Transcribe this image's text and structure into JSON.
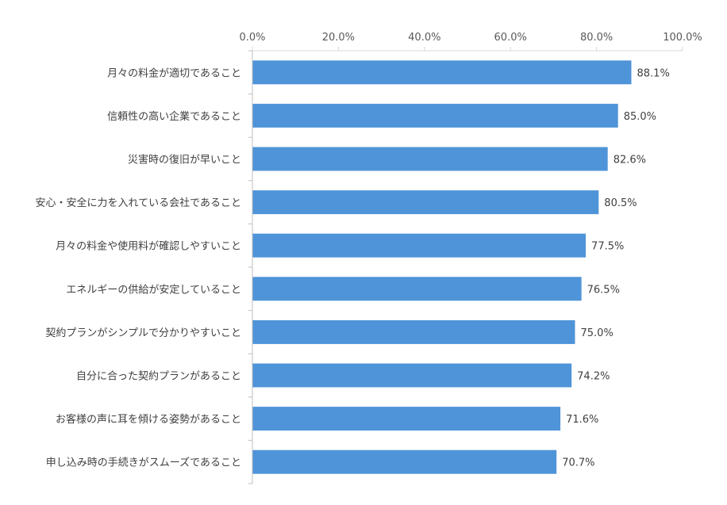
{
  "chart_data": {
    "type": "bar",
    "orientation": "horizontal",
    "title": "",
    "xlabel": "",
    "ylabel": "",
    "xlim": [
      0,
      100
    ],
    "x_ticks": [
      "0.0%",
      "20.0%",
      "40.0%",
      "60.0%",
      "80.0%",
      "100.0%"
    ],
    "x_axis_position": "top",
    "grid": false,
    "legend": "none",
    "bar_color": "#4F94D8",
    "categories": [
      "月々の料金が適切であること",
      "信頼性の高い企業であること",
      "災害時の復旧が早いこと",
      "安心・安全に力を入れている会社であること",
      "月々の料金や使用料が確認しやすいこと",
      "エネルギーの供給が安定していること",
      "契約プランがシンプルで分かりやすいこと",
      "自分に合った契約プランがあること",
      "お客様の声に耳を傾ける姿勢があること",
      "申し込み時の手続きがスムーズであること"
    ],
    "values": [
      88.1,
      85.0,
      82.6,
      80.5,
      77.5,
      76.5,
      75.0,
      74.2,
      71.6,
      70.7
    ],
    "data_labels": [
      "88.1%",
      "85.0%",
      "82.6%",
      "80.5%",
      "77.5%",
      "76.5%",
      "75.0%",
      "74.2%",
      "71.6%",
      "70.7%"
    ]
  }
}
